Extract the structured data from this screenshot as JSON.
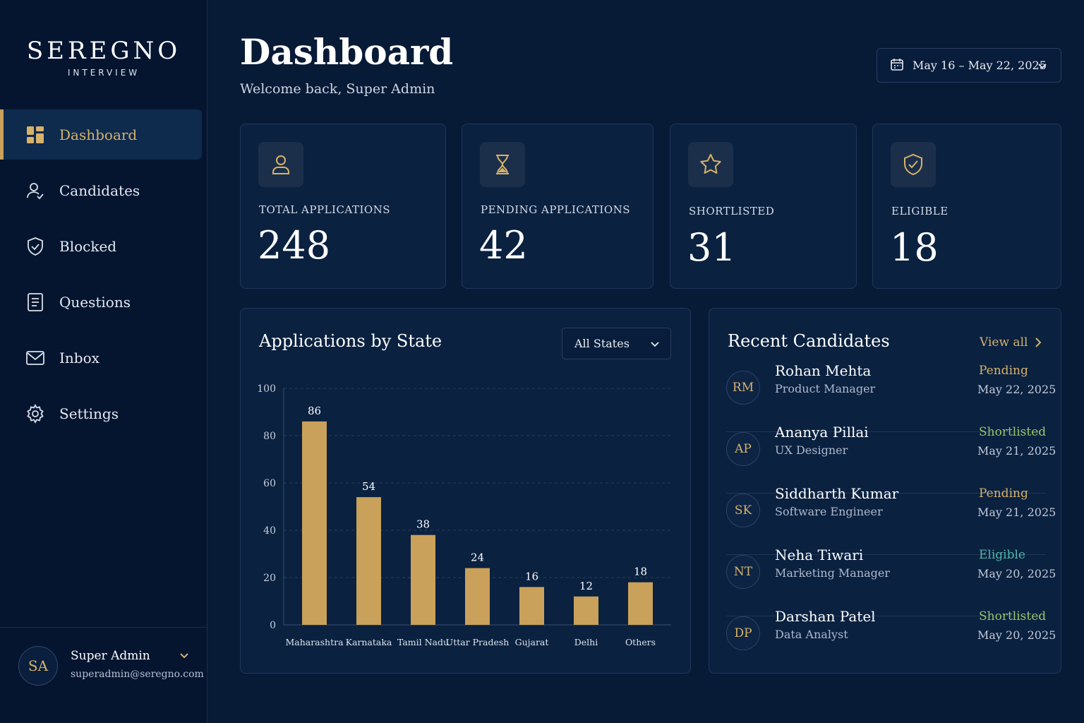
{
  "brand": {
    "name": "SEREGNO",
    "subtitle": "INTERVIEW"
  },
  "nav": [
    {
      "label": "Dashboard",
      "icon": "dashboard-icon",
      "active": true
    },
    {
      "label": "Candidates",
      "icon": "candidates-icon"
    },
    {
      "label": "Blocked",
      "icon": "shield-icon"
    },
    {
      "label": "Questions",
      "icon": "document-icon"
    },
    {
      "label": "Inbox",
      "icon": "mail-icon"
    },
    {
      "label": "Settings",
      "icon": "gear-icon"
    }
  ],
  "user": {
    "initials": "SA",
    "name": "Super Admin",
    "email": "superadmin@seregno.com"
  },
  "header": {
    "title": "Dashboard",
    "welcome": "Welcome back, Super Admin",
    "date_range": "May 16 – May 22, 2025"
  },
  "stats": [
    {
      "label": "TOTAL APPLICATIONS",
      "value": "248",
      "icon": "user-icon"
    },
    {
      "label": "PENDING APPLICATIONS",
      "value": "42",
      "icon": "hourglass-icon"
    },
    {
      "label": "SHORTLISTED",
      "value": "31",
      "icon": "star-icon"
    },
    {
      "label": "ELIGIBLE",
      "value": "18",
      "icon": "shield-check-icon"
    }
  ],
  "chart_section": {
    "title": "Applications by State",
    "filter_value": "All States"
  },
  "chart_data": {
    "type": "bar",
    "categories": [
      "Maharashtra",
      "Karnataka",
      "Tamil Nadu",
      "Uttar Pradesh",
      "Gujarat",
      "Delhi",
      "Others"
    ],
    "values": [
      86,
      54,
      38,
      24,
      16,
      12,
      18
    ],
    "yticks": [
      0,
      20,
      40,
      60,
      80,
      100
    ],
    "ylim": [
      0,
      100
    ],
    "grid": true,
    "bar_color": "#c9a15a"
  },
  "recent": {
    "title": "Recent Candidates",
    "view_all": "View all",
    "candidates": [
      {
        "initials": "RM",
        "name": "Rohan Mehta",
        "role": "Product Manager",
        "status": "Pending",
        "date": "May 22, 2025"
      },
      {
        "initials": "AP",
        "name": "Ananya Pillai",
        "role": "UX Designer",
        "status": "Shortlisted",
        "date": "May 21, 2025"
      },
      {
        "initials": "SK",
        "name": "Siddharth Kumar",
        "role": "Software Engineer",
        "status": "Pending",
        "date": "May 21, 2025"
      },
      {
        "initials": "NT",
        "name": "Neha Tiwari",
        "role": "Marketing Manager",
        "status": "Eligible",
        "date": "May 20, 2025"
      },
      {
        "initials": "DP",
        "name": "Darshan Patel",
        "role": "Data Analyst",
        "status": "Shortlisted",
        "date": "May 20, 2025"
      }
    ]
  },
  "colors": {
    "accent": "#c9a15a",
    "pending": "#d7b26a",
    "shortlisted": "#9cc36a",
    "eligible": "#4fb8a8"
  }
}
